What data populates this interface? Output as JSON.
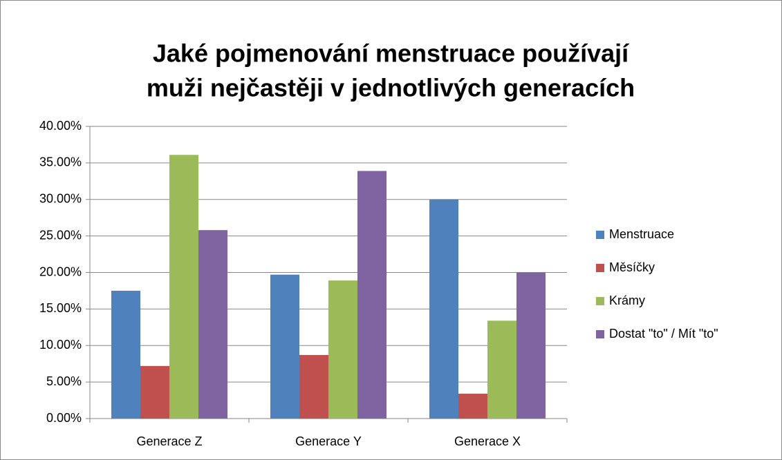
{
  "chart_data": {
    "type": "bar",
    "title": [
      "Jaké pojmenování menstruace používají",
      "muži nejčastěji v jednotlivých generacích"
    ],
    "categories": [
      "Generace Z",
      "Generace Y",
      "Generace X"
    ],
    "series": [
      {
        "name": "Menstruace",
        "color": "#4f81bd",
        "values": [
          17.5,
          19.7,
          30.0
        ]
      },
      {
        "name": "Měsíčky",
        "color": "#c0504d",
        "values": [
          7.2,
          8.7,
          3.4
        ]
      },
      {
        "name": "Krámy",
        "color": "#9bbb59",
        "values": [
          36.1,
          18.9,
          13.4
        ]
      },
      {
        "name": "Dostat \"to\" / Mít \"to\"",
        "color": "#8064a2",
        "values": [
          25.8,
          33.9,
          20.0
        ]
      }
    ],
    "ylim": [
      0,
      40
    ],
    "yticks": [
      {
        "value": 0,
        "label": "0.00%"
      },
      {
        "value": 5,
        "label": "5.00%"
      },
      {
        "value": 10,
        "label": "10.00%"
      },
      {
        "value": 15,
        "label": "15.00%"
      },
      {
        "value": 20,
        "label": "20.00%"
      },
      {
        "value": 25,
        "label": "25.00%"
      },
      {
        "value": 30,
        "label": "30.00%"
      },
      {
        "value": 35,
        "label": "35.00%"
      },
      {
        "value": 40,
        "label": "40.00%"
      }
    ],
    "grid": true,
    "legend": "right"
  }
}
